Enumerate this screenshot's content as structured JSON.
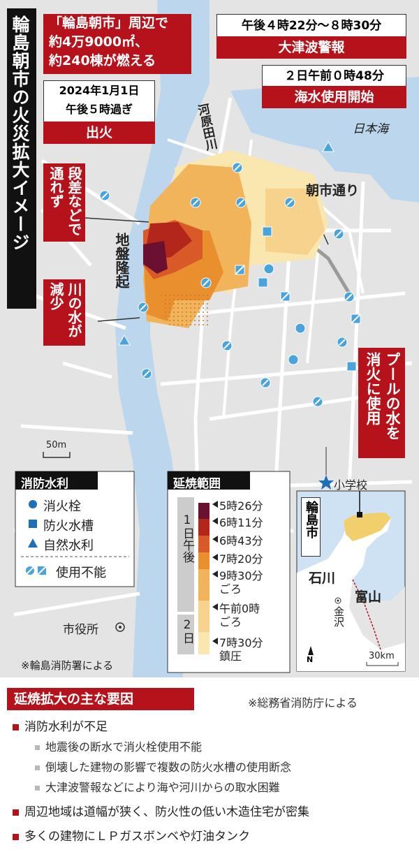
{
  "title": "輪島朝市の火災拡大イメージ",
  "callouts": {
    "burned": [
      "「輪島朝市」周辺で",
      "約4万9000㎡、",
      "約240棟が燃える"
    ],
    "outbreak": {
      "date": "2024年1月1日",
      "time": "午後５時過ぎ",
      "label": "出火"
    },
    "tsunami": {
      "time": "午後４時22分～８時30分",
      "label": "大津波警報"
    },
    "seawater": {
      "time": "２日午前０時48分",
      "label": "海水使用開始"
    },
    "blocked": "段差などで通れず",
    "river_low": "川の水が減少",
    "pool": "プールの水を消火に使用"
  },
  "map_labels": {
    "river": "河原田川",
    "sea": "日本海",
    "street": "朝市通り",
    "uplift": "地盤隆起",
    "city_hall": "市役所",
    "scale": "50m",
    "school": "小学校",
    "source": "※輪島消防署による"
  },
  "water_legend": {
    "title": "消防水利",
    "items": [
      "消火栓",
      "防火水槽",
      "自然水利",
      "使用不能"
    ]
  },
  "fire_legend": {
    "title": "延焼範囲",
    "groups": [
      "1日午後",
      "2日"
    ],
    "items": [
      {
        "label": [
          "5時26分"
        ],
        "color": "#6b1030"
      },
      {
        "label": [
          "6時11分"
        ],
        "color": "#b3261c"
      },
      {
        "label": [
          "6時43分"
        ],
        "color": "#d95a28"
      },
      {
        "label": [
          "7時20分"
        ],
        "color": "#e98f2e"
      },
      {
        "label": [
          "9時30分",
          "ごろ"
        ],
        "color": "#f2b45a"
      },
      {
        "label": [
          "午前0時",
          "ごろ"
        ],
        "color": "#f6d28c"
      },
      {
        "label": [
          "7時30分",
          "鎮圧"
        ],
        "color": "#fae7b0"
      }
    ]
  },
  "inset": {
    "city": "輪島市",
    "pref1": "石川",
    "pref2": "富山",
    "kanazawa": "金沢",
    "north": "N",
    "scale": "30km"
  },
  "factors": {
    "title": "延焼拡大の主な要因",
    "source": "※総務省消防庁による",
    "items": [
      {
        "text": "消防水利が不足",
        "sub": [
          "地震後の断水で消火栓使用不能",
          "倒壊した建物の影響で複数の防火水槽の使用断念",
          "大津波警報などにより海や河川からの取水困難"
        ]
      },
      {
        "text": "周辺地域は道幅が狭く、防火性の低い木造住宅が密集",
        "sub": []
      },
      {
        "text": "多くの建物にＬＰガスボンベや灯油タンク",
        "sub": []
      }
    ]
  }
}
